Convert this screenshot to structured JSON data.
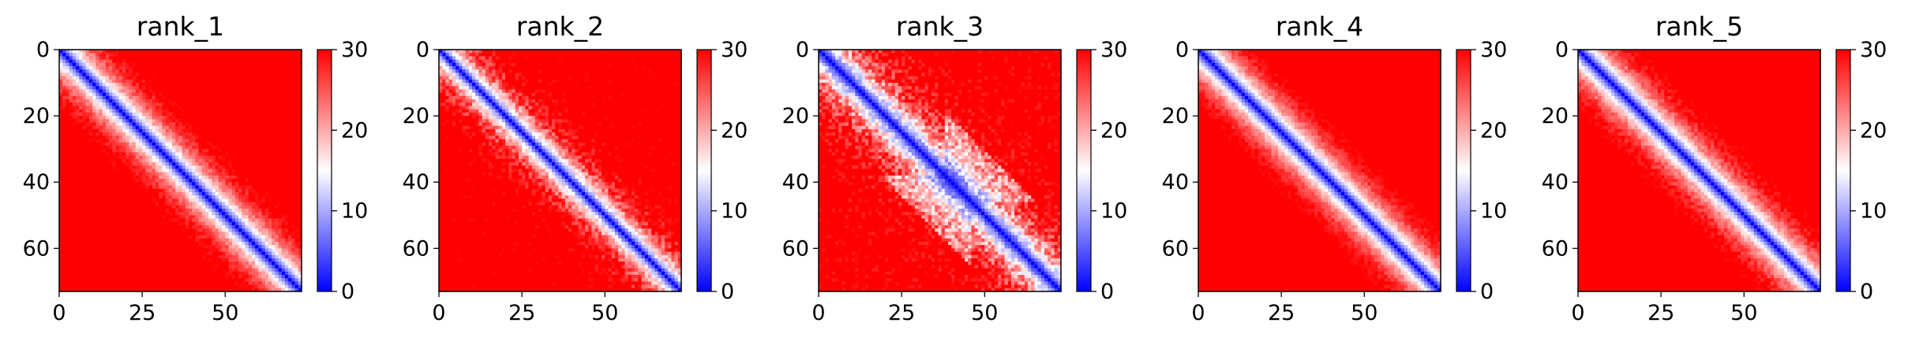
{
  "chart_data": [
    {
      "type": "heatmap",
      "title": "rank_1",
      "n": 73,
      "x_ticks": [
        0,
        25,
        50
      ],
      "y_ticks": [
        0,
        20,
        40,
        60
      ],
      "colorbar": {
        "min": 0,
        "max": 30,
        "ticks": [
          0,
          10,
          20,
          30
        ],
        "colormap": "bwr"
      },
      "diagonal_band_width": 7,
      "noise": 0.18,
      "bulge": null
    },
    {
      "type": "heatmap",
      "title": "rank_2",
      "n": 73,
      "x_ticks": [
        0,
        25,
        50
      ],
      "y_ticks": [
        0,
        20,
        40,
        60
      ],
      "colorbar": {
        "min": 0,
        "max": 30,
        "ticks": [
          0,
          10,
          20,
          30
        ],
        "colormap": "bwr"
      },
      "diagonal_band_width": 6,
      "noise": 0.35,
      "bulge": null
    },
    {
      "type": "heatmap",
      "title": "rank_3",
      "n": 73,
      "x_ticks": [
        0,
        25,
        50
      ],
      "y_ticks": [
        0,
        20,
        40,
        60
      ],
      "colorbar": {
        "min": 0,
        "max": 30,
        "ticks": [
          0,
          10,
          20,
          30
        ],
        "colormap": "bwr"
      },
      "diagonal_band_width": 8,
      "noise": 0.45,
      "bulge": [
        38,
        45
      ]
    },
    {
      "type": "heatmap",
      "title": "rank_4",
      "n": 73,
      "x_ticks": [
        0,
        25,
        50
      ],
      "y_ticks": [
        0,
        20,
        40,
        60
      ],
      "colorbar": {
        "min": 0,
        "max": 30,
        "ticks": [
          0,
          10,
          20,
          30
        ],
        "colormap": "bwr"
      },
      "diagonal_band_width": 7,
      "noise": 0.15,
      "bulge": null
    },
    {
      "type": "heatmap",
      "title": "rank_5",
      "n": 73,
      "x_ticks": [
        0,
        25,
        50
      ],
      "y_ticks": [
        0,
        20,
        40,
        60
      ],
      "colorbar": {
        "min": 0,
        "max": 30,
        "ticks": [
          0,
          10,
          20,
          30
        ],
        "colormap": "bwr"
      },
      "diagonal_band_width": 7,
      "noise": 0.18,
      "bulge": null
    }
  ],
  "colors": {
    "low": "#0000ff",
    "mid": "#ffffff",
    "high": "#ff0000"
  }
}
